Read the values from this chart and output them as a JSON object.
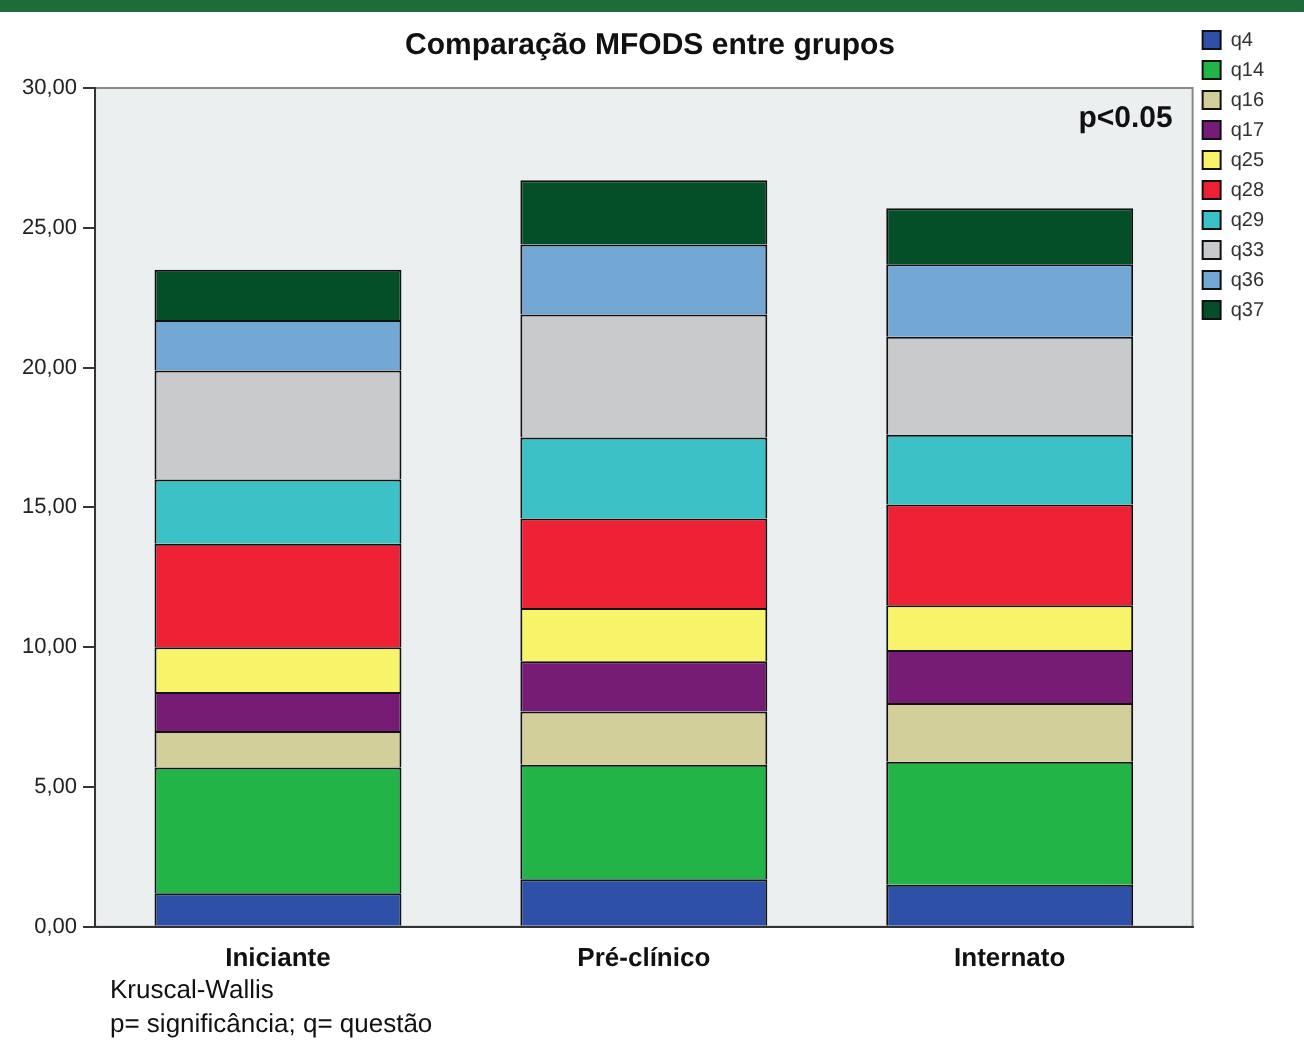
{
  "chart_data": {
    "type": "bar",
    "stacked": true,
    "title": "Comparação MFODS entre grupos",
    "categories": [
      "Iniciante",
      "Pré-clínico",
      "Internato"
    ],
    "series": [
      {
        "name": "q4",
        "color": "#2e50a6",
        "values": [
          1.2,
          1.7,
          1.5
        ]
      },
      {
        "name": "q14",
        "color": "#22b446",
        "values": [
          4.5,
          4.1,
          4.4
        ]
      },
      {
        "name": "q16",
        "color": "#d2cf9a",
        "values": [
          1.3,
          1.9,
          2.1
        ]
      },
      {
        "name": "q17",
        "color": "#761c74",
        "values": [
          1.4,
          1.8,
          1.9
        ]
      },
      {
        "name": "q25",
        "color": "#f7f46a",
        "values": [
          1.6,
          1.9,
          1.6
        ]
      },
      {
        "name": "q28",
        "color": "#ee2033",
        "values": [
          3.7,
          3.2,
          3.6
        ]
      },
      {
        "name": "q29",
        "color": "#3cc1c6",
        "values": [
          2.3,
          2.9,
          2.5
        ]
      },
      {
        "name": "q33",
        "color": "#c8cacc",
        "values": [
          3.9,
          4.4,
          3.5
        ]
      },
      {
        "name": "q36",
        "color": "#74a8d4",
        "values": [
          1.8,
          2.5,
          2.6
        ]
      },
      {
        "name": "q37",
        "color": "#044f27",
        "values": [
          1.8,
          2.3,
          2.0
        ]
      }
    ],
    "ylim": [
      0,
      30
    ],
    "yticks": [
      {
        "value": 0,
        "label": "0,00"
      },
      {
        "value": 5,
        "label": "5,00"
      },
      {
        "value": 10,
        "label": "10,00"
      },
      {
        "value": 15,
        "label": "15,00"
      },
      {
        "value": 20,
        "label": "20,00"
      },
      {
        "value": 25,
        "label": "25,00"
      },
      {
        "value": 30,
        "label": "30,00"
      }
    ],
    "grid": false,
    "legend": "right",
    "annotations": [
      "p<0.05",
      "Kruscal-Wallis",
      "p= significância; q= questão"
    ]
  }
}
